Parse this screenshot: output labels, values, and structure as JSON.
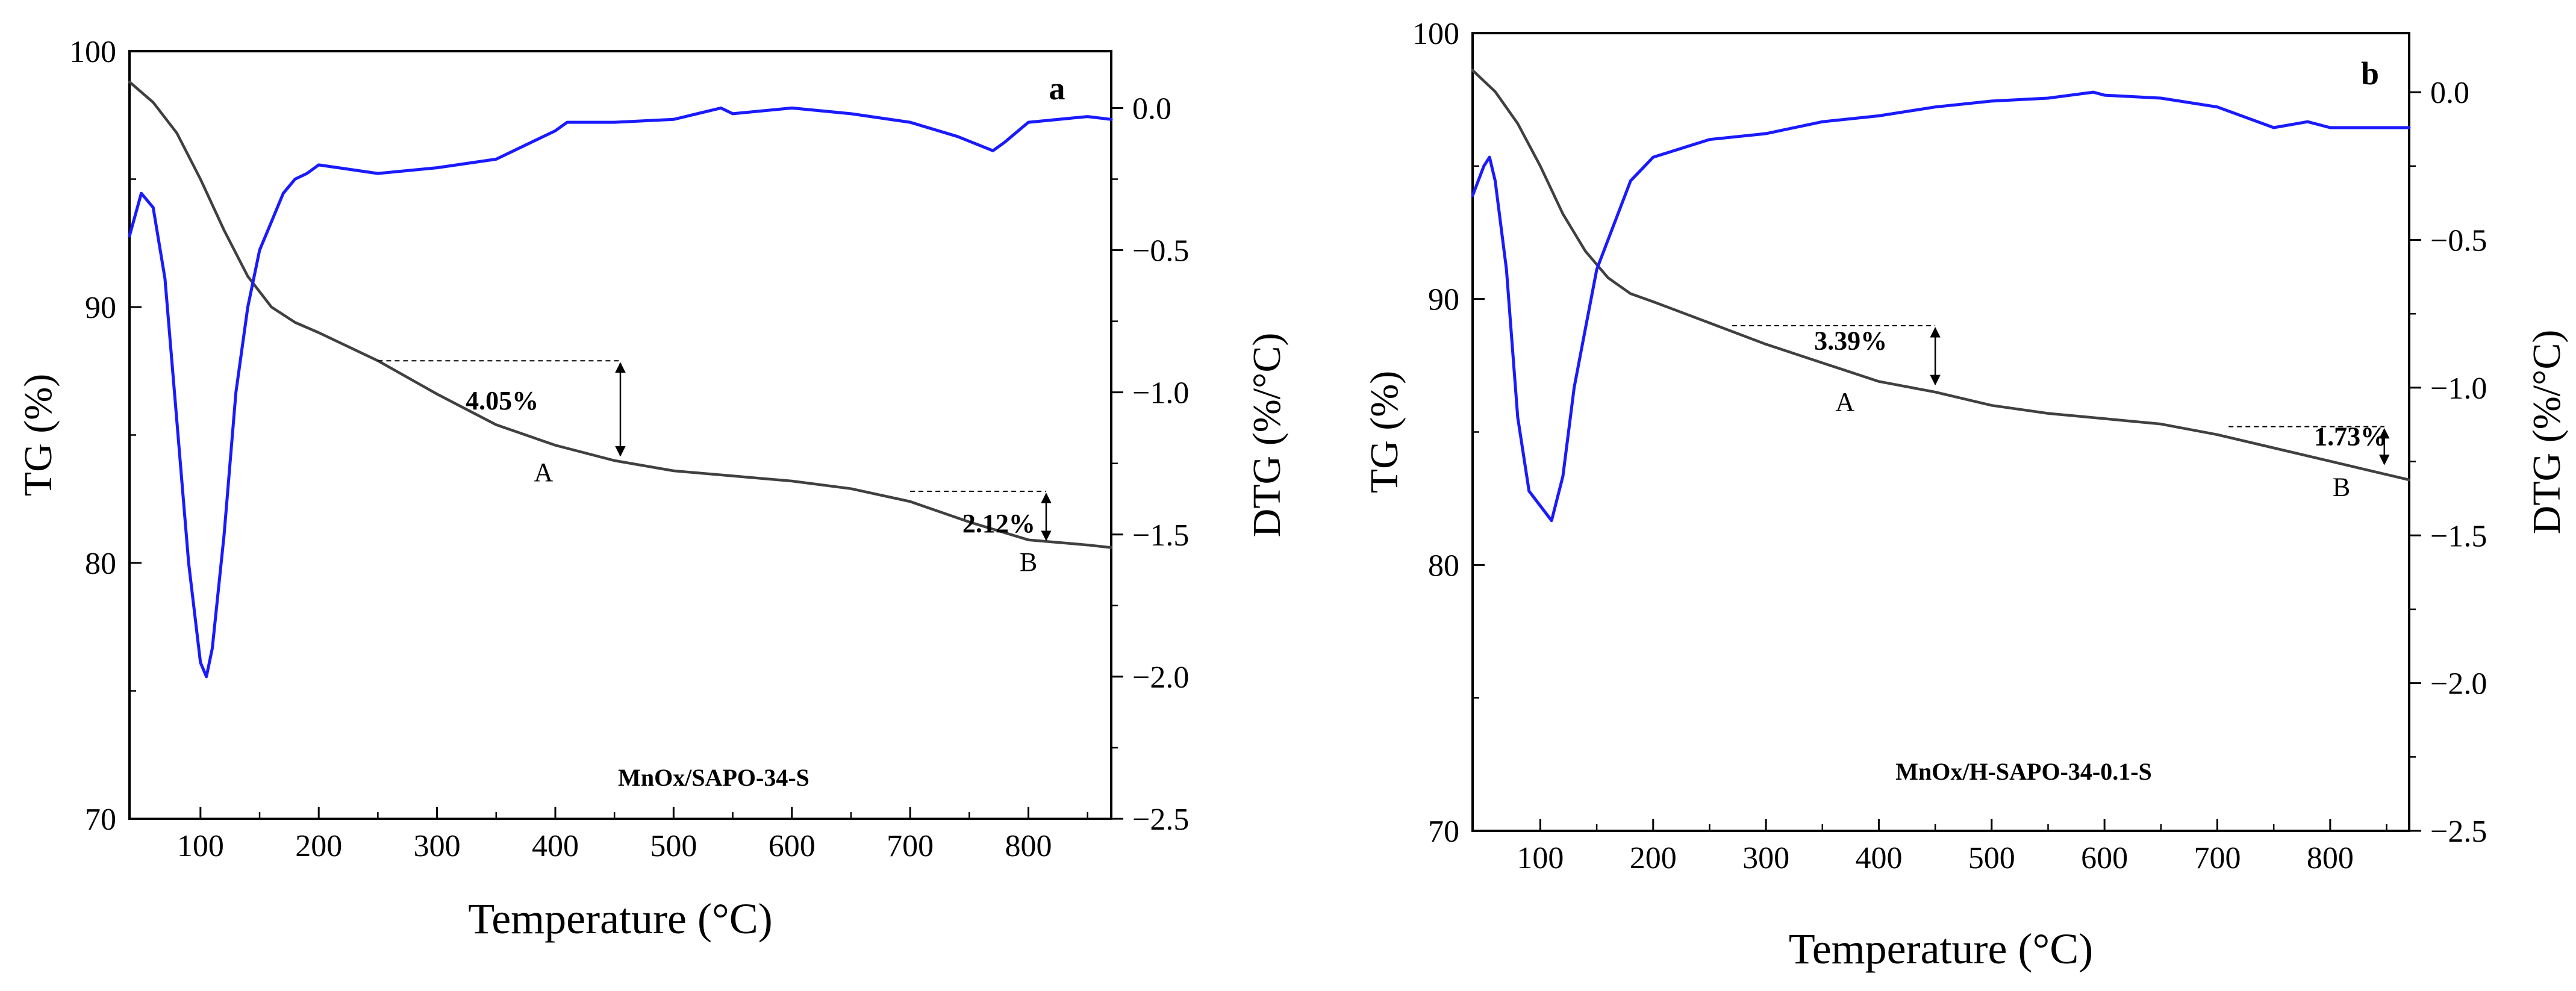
{
  "chart_data": [
    {
      "type": "line",
      "panel": "a",
      "sample": "MnOx/SAPO-34-S",
      "xlabel": "Temperature (°C)",
      "ylabel_left": "TG (%)",
      "ylabel_right": "DTG (%/°C)",
      "xlim": [
        40,
        870
      ],
      "ylim_left": [
        70,
        100
      ],
      "ylim_right": [
        -2.5,
        0.2
      ],
      "x_ticks": [
        100,
        200,
        300,
        400,
        500,
        600,
        700,
        800
      ],
      "y_ticks_left": [
        70,
        80,
        90,
        100
      ],
      "y_ticks_right": [
        0.0,
        -0.5,
        -1.0,
        -1.5,
        -2.0,
        -2.5
      ],
      "y_tick_labels_right": [
        "0.0",
        "−0.5",
        "−1.0",
        "−1.5",
        "−2.0",
        "−2.5"
      ],
      "series": [
        {
          "name": "TG",
          "axis": "left",
          "color": "#404040",
          "x": [
            40,
            60,
            80,
            100,
            120,
            140,
            160,
            180,
            200,
            250,
            300,
            350,
            400,
            450,
            500,
            550,
            600,
            650,
            700,
            750,
            800,
            850,
            870
          ],
          "values": [
            98.8,
            98.0,
            96.8,
            95.0,
            93.0,
            91.2,
            90.0,
            89.4,
            89.0,
            87.9,
            86.6,
            85.4,
            84.6,
            84.0,
            83.6,
            83.4,
            83.2,
            82.9,
            82.4,
            81.6,
            80.9,
            80.7,
            80.6
          ]
        },
        {
          "name": "DTG",
          "axis": "right",
          "color": "#1a1aff",
          "x": [
            40,
            50,
            60,
            70,
            80,
            90,
            100,
            105,
            110,
            120,
            130,
            140,
            150,
            160,
            170,
            180,
            190,
            200,
            250,
            300,
            350,
            400,
            410,
            450,
            500,
            540,
            550,
            600,
            650,
            700,
            740,
            770,
            780,
            800,
            850,
            870
          ],
          "values": [
            -0.45,
            -0.3,
            -0.35,
            -0.6,
            -1.1,
            -1.6,
            -1.95,
            -2.0,
            -1.9,
            -1.5,
            -1.0,
            -0.7,
            -0.5,
            -0.4,
            -0.3,
            -0.25,
            -0.23,
            -0.2,
            -0.23,
            -0.21,
            -0.18,
            -0.08,
            -0.05,
            -0.05,
            -0.04,
            0.0,
            -0.02,
            0.0,
            -0.02,
            -0.05,
            -0.1,
            -0.15,
            -0.12,
            -0.05,
            -0.03,
            -0.04
          ]
        }
      ],
      "annotations": {
        "step_A": {
          "label": "A",
          "percent": "4.05%",
          "x": 390,
          "upper": 87.9,
          "lower": 84.1,
          "from_x": 250,
          "arrow_x": 455,
          "pct_x": 355,
          "pct_y": 86.0,
          "label_x": 390,
          "label_y": 83.2
        },
        "step_B": {
          "label": "B",
          "percent": "2.12%",
          "x": 800,
          "upper": 82.8,
          "lower": 80.8,
          "from_x": 700,
          "arrow_x": 815,
          "pct_x": 775,
          "pct_y": 81.2,
          "label_x": 800,
          "label_y": 79.7
        }
      }
    },
    {
      "type": "line",
      "panel": "b",
      "sample": "MnOx/H-SAPO-34-0.1-S",
      "xlabel": "Temperature (°C)",
      "ylabel_left": "TG (%)",
      "ylabel_right": "DTG (%/°C)",
      "xlim": [
        40,
        870
      ],
      "ylim_left": [
        70,
        100
      ],
      "ylim_right": [
        -2.5,
        0.2
      ],
      "x_ticks": [
        100,
        200,
        300,
        400,
        500,
        600,
        700,
        800
      ],
      "y_ticks_left": [
        70,
        80,
        90,
        100
      ],
      "y_ticks_right": [
        0.0,
        -0.5,
        -1.0,
        -1.5,
        -2.0,
        -2.5
      ],
      "y_tick_labels_right": [
        "0.0",
        "−0.5",
        "−1.0",
        "−1.5",
        "−2.0",
        "−2.5"
      ],
      "series": [
        {
          "name": "TG",
          "axis": "left",
          "color": "#404040",
          "x": [
            40,
            60,
            80,
            100,
            120,
            140,
            160,
            180,
            200,
            250,
            300,
            350,
            400,
            450,
            500,
            550,
            600,
            650,
            700,
            750,
            800,
            850,
            870
          ],
          "values": [
            98.6,
            97.8,
            96.6,
            95.0,
            93.2,
            91.8,
            90.8,
            90.2,
            89.9,
            89.1,
            88.3,
            87.6,
            86.9,
            86.5,
            86.0,
            85.7,
            85.5,
            85.3,
            84.9,
            84.4,
            83.9,
            83.4,
            83.2
          ]
        },
        {
          "name": "DTG",
          "axis": "right",
          "color": "#1a1aff",
          "x": [
            40,
            50,
            55,
            60,
            70,
            80,
            90,
            100,
            110,
            120,
            130,
            140,
            150,
            160,
            170,
            180,
            200,
            250,
            300,
            350,
            400,
            450,
            500,
            550,
            590,
            600,
            650,
            700,
            750,
            780,
            800,
            850,
            870
          ],
          "values": [
            -0.35,
            -0.25,
            -0.22,
            -0.3,
            -0.6,
            -1.1,
            -1.35,
            -1.4,
            -1.45,
            -1.3,
            -1.0,
            -0.8,
            -0.6,
            -0.5,
            -0.4,
            -0.3,
            -0.22,
            -0.16,
            -0.14,
            -0.1,
            -0.08,
            -0.05,
            -0.03,
            -0.02,
            0.0,
            -0.01,
            -0.02,
            -0.05,
            -0.12,
            -0.1,
            -0.12,
            -0.12,
            -0.12
          ]
        }
      ],
      "annotations": {
        "step_A": {
          "label": "A",
          "percent": "3.39%",
          "x": 370,
          "upper": 89.0,
          "lower": 86.7,
          "from_x": 270,
          "arrow_x": 450,
          "pct_x": 375,
          "pct_y": 88.1,
          "label_x": 370,
          "label_y": 85.8
        },
        "step_B": {
          "label": "B",
          "percent": "1.73%",
          "x": 810,
          "upper": 85.2,
          "lower": 83.7,
          "from_x": 710,
          "arrow_x": 848,
          "pct_x": 818,
          "pct_y": 84.5,
          "label_x": 810,
          "label_y": 82.6
        }
      }
    }
  ]
}
